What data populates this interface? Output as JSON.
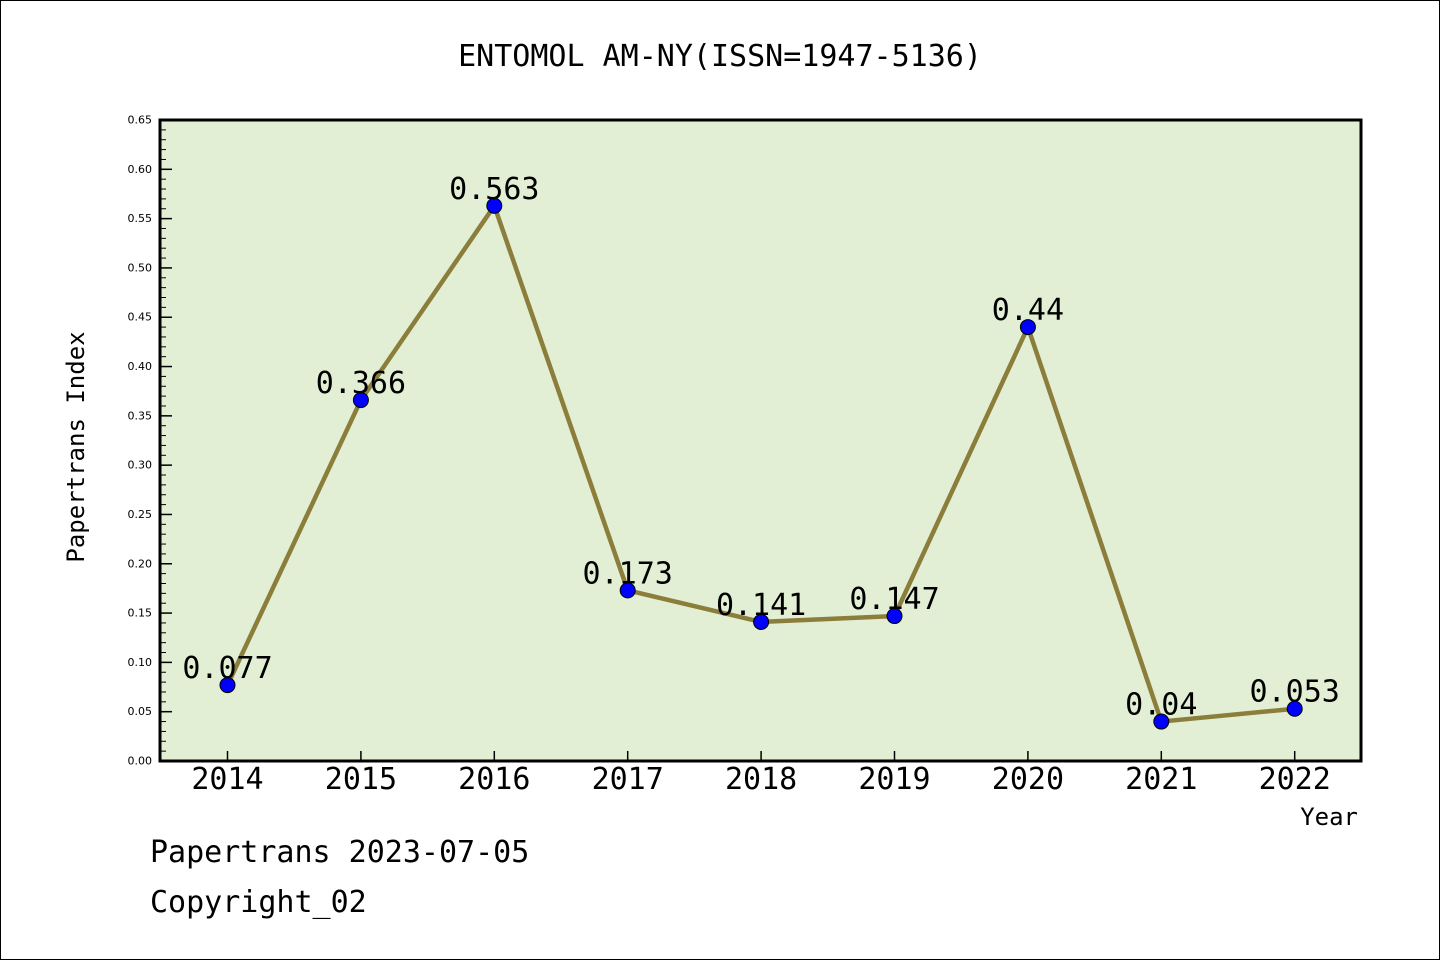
{
  "chart_data": {
    "type": "line",
    "title": "ENTOMOL AM-NY(ISSN=1947-5136)",
    "xlabel": "Year",
    "ylabel": "Papertrans Index",
    "categories": [
      "2014",
      "2015",
      "2016",
      "2017",
      "2018",
      "2019",
      "2020",
      "2021",
      "2022"
    ],
    "series": [
      {
        "values": [
          0.077,
          0.366,
          0.563,
          0.173,
          0.141,
          0.147,
          0.44,
          0.04,
          0.053
        ],
        "data_labels": [
          "0.077",
          "0.366",
          "0.563",
          "0.173",
          "0.141",
          "0.147",
          "0.44",
          "0.04",
          "0.053"
        ]
      }
    ],
    "ylim": [
      0,
      0.65
    ],
    "yticks": [
      "0.00",
      "0.05",
      "0.10",
      "0.15",
      "0.20",
      "0.25",
      "0.30",
      "0.35",
      "0.40",
      "0.45",
      "0.50",
      "0.55",
      "0.60",
      "0.65"
    ],
    "grid": false,
    "colors": {
      "plot_background": "#e2efd5",
      "line": "#8b7d3a",
      "marker": "#0000ff"
    }
  },
  "footer": {
    "line1": "Papertrans 2023-07-05",
    "line2": "Copyright_02"
  }
}
